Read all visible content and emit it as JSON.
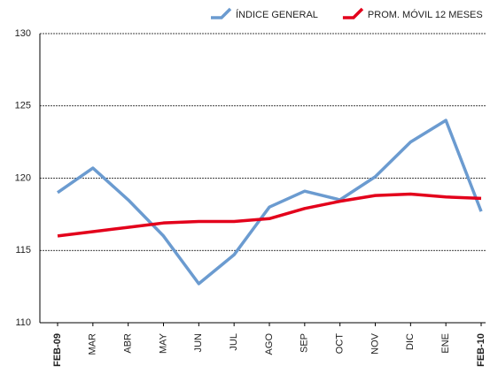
{
  "chart_data": {
    "type": "line",
    "categories": [
      "FEB-09",
      "MAR",
      "ABR",
      "MAY",
      "JUN",
      "JUL",
      "AGO",
      "SEP",
      "OCT",
      "NOV",
      "DIC",
      "ENE",
      "FEB-10"
    ],
    "series": [
      {
        "name": "ÍNDICE GENERAL",
        "color": "#6b9bd0",
        "values": [
          119,
          120.7,
          118.5,
          116,
          112.7,
          114.7,
          118,
          119.1,
          118.5,
          120.1,
          122.5,
          124,
          117.7
        ]
      },
      {
        "name": "PROM. MÓVIL 12 MESES",
        "color": "#e3001b",
        "values": [
          116,
          116.3,
          116.6,
          116.9,
          117,
          117,
          117.2,
          117.9,
          118.4,
          118.8,
          118.9,
          118.7,
          118.6
        ]
      }
    ],
    "ylim": [
      110,
      130
    ],
    "yticks": [
      110,
      115,
      120,
      125,
      130
    ],
    "grid": true,
    "legend": "top"
  }
}
